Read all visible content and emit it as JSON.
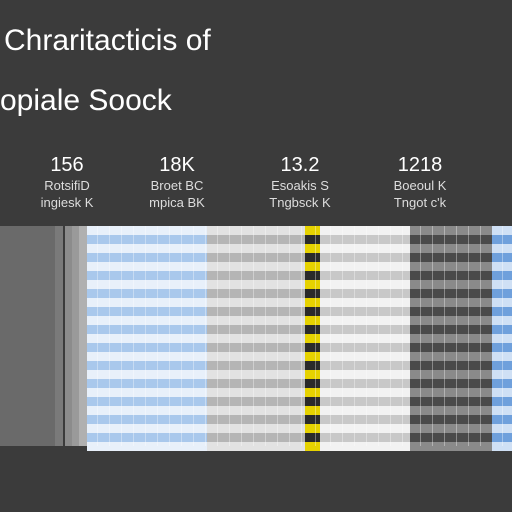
{
  "header": {
    "title": "Chraritacticis of",
    "subtitle": "opiale Soock"
  },
  "stats": [
    {
      "value": "156",
      "line1": "RotsifiD",
      "line2": "ingiesk K"
    },
    {
      "value": "18K",
      "line1": "Broet BC",
      "line2": "mpica BK"
    },
    {
      "value": "13.2",
      "line1": "Esoakis S",
      "line2": "Tngbsck K"
    },
    {
      "value": "1218",
      "line1": "Boeoul K",
      "line2": "Tngot c'k"
    }
  ]
}
